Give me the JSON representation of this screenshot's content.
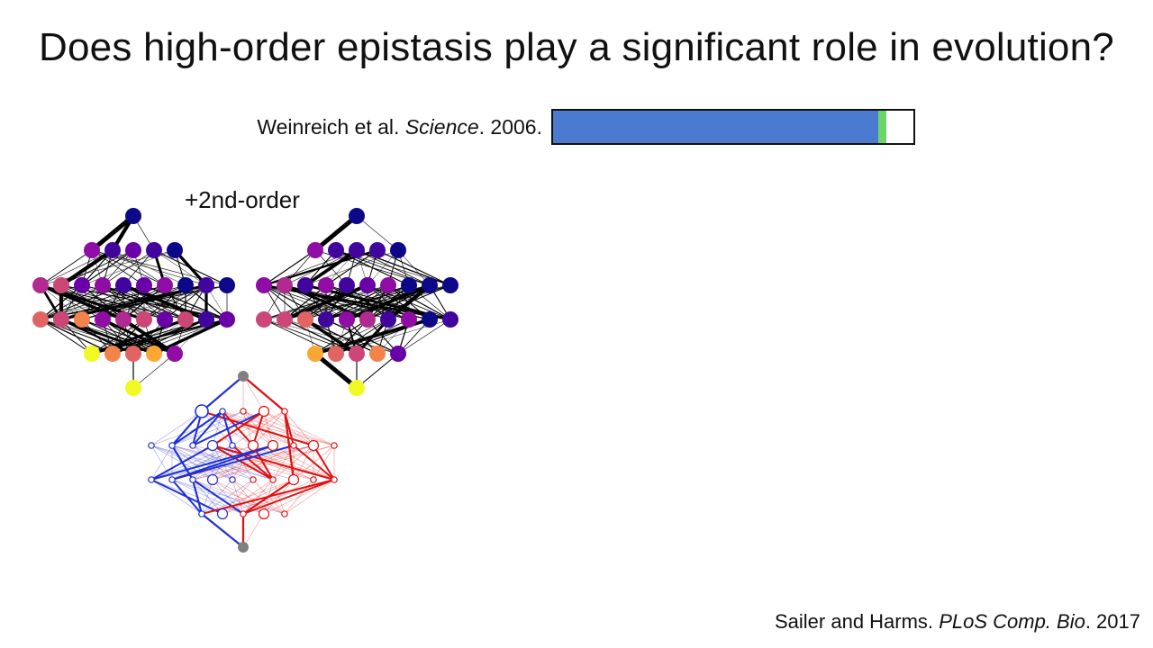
{
  "slide": {
    "title": "Does high-order epistasis play a significant role in evolution?",
    "reference": {
      "authors": "Weinreich et al.",
      "journal": "Science",
      "year": ". 2006."
    },
    "order_label": "+2nd-order",
    "citation": {
      "authors": "Sailer and Harms.",
      "journal": "PLoS Comp. Bio",
      "year": ". 2017"
    }
  },
  "bar": {
    "segments": [
      {
        "name": "blue-segment",
        "fraction": 0.903,
        "color": "#4a7bd0"
      },
      {
        "name": "green-segment",
        "fraction": 0.022,
        "color": "#6bd46b"
      },
      {
        "name": "empty-segment",
        "fraction": 0.075,
        "color": "#ffffff"
      }
    ]
  },
  "colors": {
    "magma_palette": [
      "#0d0887",
      "#41049d",
      "#6a00a8",
      "#8f0da4",
      "#b12a90",
      "#cc4778",
      "#e16462",
      "#f2844b",
      "#fca636",
      "#f0f921"
    ],
    "path_blue": "#1f2fd8",
    "path_red": "#e01010",
    "endpoint": "#808080"
  }
}
